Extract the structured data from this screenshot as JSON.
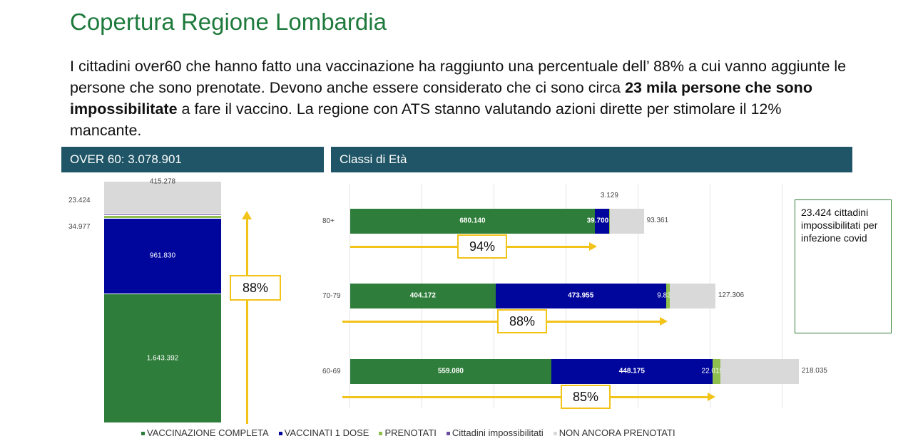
{
  "title": "Copertura Regione Lombardia",
  "body": {
    "p1": "I cittadini over60 che hanno fatto una vaccinazione ha raggiunto una percentuale dell’ 88% a cui vanno aggiunte le persone che sono prenotate. Devono anche essere considerato che ci sono circa ",
    "bold": "23 mila persone che sono impossibilitate",
    "p2": " a fare il vaccino.  La regione con ATS stanno valutando azioni dirette per stimolare il 12% mancante."
  },
  "panel_left_header": "OVER 60: 3.078.901",
  "panel_right_header": "Classi di Età",
  "note": "23.424 cittadini impossibilitati per infezione covid",
  "colors": {
    "completa": "#2e7d3a",
    "dose1": "#00059c",
    "prenotati": "#8fbf4d",
    "impossibilitati": "#6a4fa0",
    "non_prenotati": "#d9d9d9",
    "arrow": "#f2c318"
  },
  "chart_data": [
    {
      "type": "bar",
      "stacked": true,
      "title": "OVER 60: 3.078.901",
      "categories": [
        "Over 60"
      ],
      "series": [
        {
          "name": "VACCINAZIONE COMPLETA",
          "values": [
            1643392
          ],
          "label": "1.643.392"
        },
        {
          "name": "VACCINATI 1 DOSE",
          "values": [
            961830
          ],
          "label": "961.830"
        },
        {
          "name": "PRENOTATI",
          "values": [
            34977
          ],
          "label": "34.977"
        },
        {
          "name": "Cittadini impossibilitati",
          "values": [
            23424
          ],
          "label": "23.424"
        },
        {
          "name": "NON ANCORA PRENOTATI",
          "values": [
            415278
          ],
          "label": "415.278"
        }
      ],
      "annotation": "88%"
    },
    {
      "type": "bar",
      "orientation": "horizontal",
      "stacked": true,
      "title": "Classi di Età",
      "categories": [
        "80+",
        "70-79",
        "60-69"
      ],
      "xlim": [
        0,
        1200000
      ],
      "grid": true,
      "series": [
        {
          "name": "VACCINAZIONE COMPLETA",
          "values": [
            680140,
            404172,
            559080
          ],
          "labels": [
            "680.140",
            "404.172",
            "559.080"
          ]
        },
        {
          "name": "VACCINATI 1 DOSE",
          "values": [
            39700,
            473955,
            448175
          ],
          "labels": [
            "39.700",
            "473.955",
            "448.175"
          ]
        },
        {
          "name": "PRENOTATI",
          "values": [
            3129,
            9833,
            22015
          ],
          "labels": [
            "3.129",
            "9.833",
            "22.015"
          ]
        },
        {
          "name": "NON ANCORA PRENOTATI",
          "values": [
            93361,
            127306,
            218035
          ],
          "labels": [
            "93.361",
            "127.306",
            "218.035"
          ]
        }
      ],
      "annotations": [
        "94%",
        "88%",
        "85%"
      ]
    }
  ],
  "legend": [
    "VACCINAZIONE COMPLETA",
    "VACCINATI 1 DOSE",
    "PRENOTATI",
    "Cittadini impossibilitati",
    "NON ANCORA PRENOTATI"
  ]
}
